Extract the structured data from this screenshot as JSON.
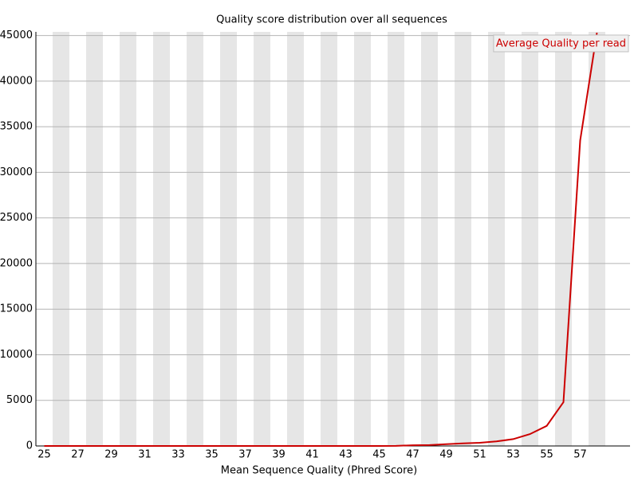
{
  "chart_data": {
    "type": "line",
    "title": "Quality score distribution over all sequences",
    "x_label": "Mean Sequence Quality (Phred Score)",
    "categories": [
      "25",
      null,
      "27",
      null,
      "29",
      null,
      "31",
      null,
      "33",
      null,
      "35",
      null,
      "37",
      null,
      "39",
      null,
      "41",
      null,
      "43",
      null,
      "45",
      null,
      "47",
      null,
      "49",
      null,
      "51",
      null,
      "53",
      null,
      "55",
      null,
      "57",
      null
    ],
    "series": [
      {
        "name": "Average Quality per read",
        "color": "#cc0000",
        "values": [
          0,
          0,
          0,
          0,
          0,
          0,
          0,
          0,
          0,
          0,
          0,
          0,
          0,
          0,
          0,
          0,
          0,
          0,
          0,
          0,
          0,
          10,
          80,
          100,
          200,
          280,
          350,
          500,
          750,
          1300,
          2200,
          4800,
          33500,
          45300
        ]
      }
    ],
    "ylim": [
      0,
      45400
    ],
    "yticks": [
      0,
      5000,
      10000,
      15000,
      20000,
      25000,
      30000,
      35000,
      40000,
      45000
    ],
    "grid": true,
    "legend": "top-right"
  }
}
